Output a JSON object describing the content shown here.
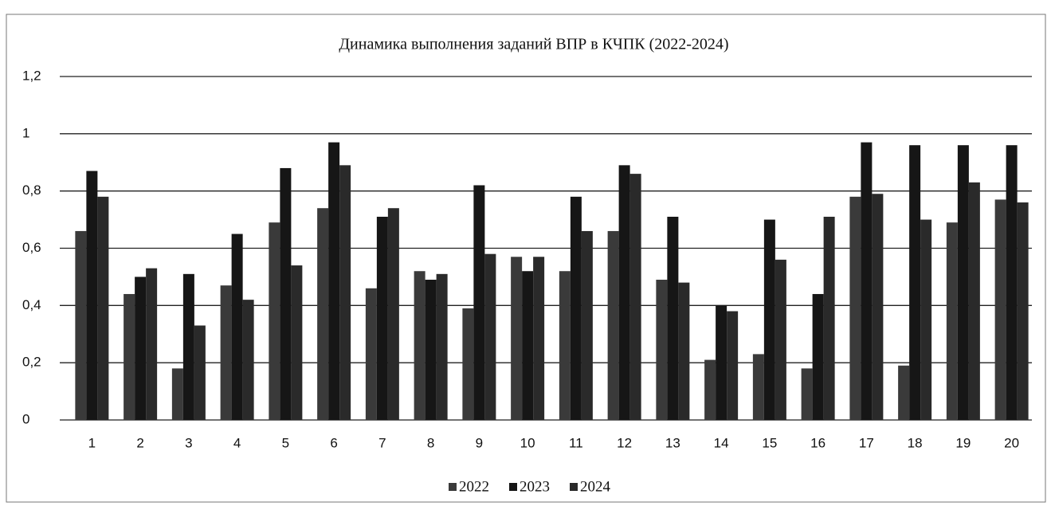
{
  "chart_data": {
    "type": "bar",
    "title": "Динамика выполнения заданий ВПР в КЧПК (2022-2024)",
    "categories": [
      "1",
      "2",
      "3",
      "4",
      "5",
      "6",
      "7",
      "8",
      "9",
      "10",
      "11",
      "12",
      "13",
      "14",
      "15",
      "16",
      "17",
      "18",
      "19",
      "20"
    ],
    "series": [
      {
        "name": "2022",
        "color": "#3a3a3a",
        "values": [
          0.66,
          0.44,
          0.18,
          0.47,
          0.69,
          0.74,
          0.46,
          0.52,
          0.39,
          0.57,
          0.52,
          0.66,
          0.49,
          0.21,
          0.23,
          0.18,
          0.78,
          0.19,
          0.69,
          0.77
        ]
      },
      {
        "name": "2023",
        "color": "#161616",
        "values": [
          0.87,
          0.5,
          0.51,
          0.65,
          0.88,
          0.97,
          0.71,
          0.49,
          0.82,
          0.52,
          0.78,
          0.89,
          0.71,
          0.4,
          0.7,
          0.44,
          0.97,
          0.96,
          0.96,
          0.96
        ]
      },
      {
        "name": "2024",
        "color": "#2a2a2a",
        "values": [
          0.78,
          0.53,
          0.33,
          0.42,
          0.54,
          0.89,
          0.74,
          0.51,
          0.58,
          0.57,
          0.66,
          0.86,
          0.48,
          0.38,
          0.56,
          0.71,
          0.79,
          0.7,
          0.83,
          0.76
        ]
      }
    ],
    "ylim": [
      0,
      1.2
    ],
    "yticks": [
      0,
      {
        "value": 0.2,
        "label": "0,2"
      },
      {
        "value": 0.4,
        "label": "0,4"
      },
      {
        "value": 0.6,
        "label": "0,6"
      },
      {
        "value": 0.8,
        "label": "0,8"
      },
      1,
      {
        "value": 1.2,
        "label": "1,2"
      }
    ],
    "grid": true,
    "legend": "bottom"
  }
}
